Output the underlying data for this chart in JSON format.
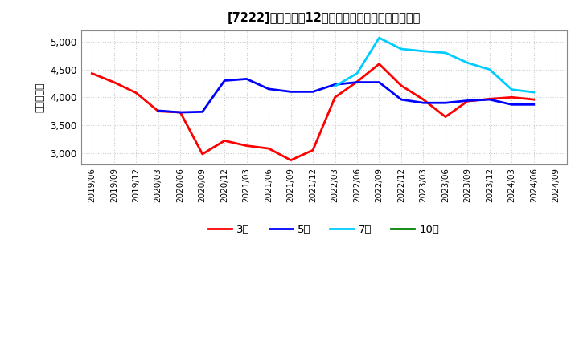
{
  "title": "[7222]　経常利益12か月移動合計の標準偏差の推移",
  "ylabel": "（百万円）",
  "ylim": [
    2800,
    5200
  ],
  "yticks": [
    3000,
    3500,
    4000,
    4500,
    5000
  ],
  "background_color": "#ffffff",
  "plot_bg_color": "#ffffff",
  "grid_color": "#aaaaaa",
  "series": {
    "3年": {
      "color": "#ff0000",
      "data": [
        [
          "2019/06",
          4430
        ],
        [
          "2019/09",
          4270
        ],
        [
          "2019/12",
          4080
        ],
        [
          "2020/03",
          3750
        ],
        [
          "2020/06",
          3730
        ],
        [
          "2020/09",
          2980
        ],
        [
          "2020/12",
          3220
        ],
        [
          "2021/03",
          3130
        ],
        [
          "2021/06",
          3080
        ],
        [
          "2021/09",
          2870
        ],
        [
          "2021/12",
          3050
        ],
        [
          "2022/03",
          4000
        ],
        [
          "2022/06",
          4280
        ],
        [
          "2022/09",
          4600
        ],
        [
          "2022/12",
          4210
        ],
        [
          "2023/03",
          3960
        ],
        [
          "2023/06",
          3650
        ],
        [
          "2023/09",
          3930
        ],
        [
          "2023/12",
          3970
        ],
        [
          "2024/03",
          4000
        ],
        [
          "2024/06",
          3960
        ]
      ]
    },
    "5年": {
      "color": "#0000ff",
      "data": [
        [
          "2020/03",
          3760
        ],
        [
          "2020/06",
          3730
        ],
        [
          "2020/09",
          3740
        ],
        [
          "2020/12",
          4300
        ],
        [
          "2021/03",
          4330
        ],
        [
          "2021/06",
          4150
        ],
        [
          "2021/09",
          4100
        ],
        [
          "2021/12",
          4100
        ],
        [
          "2022/03",
          4230
        ],
        [
          "2022/06",
          4270
        ],
        [
          "2022/09",
          4270
        ],
        [
          "2022/12",
          3960
        ],
        [
          "2023/03",
          3900
        ],
        [
          "2023/06",
          3900
        ],
        [
          "2023/09",
          3940
        ],
        [
          "2023/12",
          3960
        ],
        [
          "2024/03",
          3870
        ],
        [
          "2024/06",
          3870
        ]
      ]
    },
    "7年": {
      "color": "#00ccff",
      "data": [
        [
          "2022/03",
          4200
        ],
        [
          "2022/06",
          4430
        ],
        [
          "2022/09",
          5070
        ],
        [
          "2022/12",
          4870
        ],
        [
          "2023/03",
          4830
        ],
        [
          "2023/06",
          4800
        ],
        [
          "2023/09",
          4620
        ],
        [
          "2023/12",
          4500
        ],
        [
          "2024/03",
          4140
        ],
        [
          "2024/06",
          4090
        ]
      ]
    },
    "10年": {
      "color": "#008000",
      "data": []
    }
  },
  "xtick_labels": [
    "2019/06",
    "2019/09",
    "2019/12",
    "2020/03",
    "2020/06",
    "2020/09",
    "2020/12",
    "2021/03",
    "2021/06",
    "2021/09",
    "2021/12",
    "2022/03",
    "2022/06",
    "2022/09",
    "2022/12",
    "2023/03",
    "2023/06",
    "2023/09",
    "2023/12",
    "2024/03",
    "2024/06",
    "2024/09"
  ],
  "legend_order": [
    "3年",
    "5年",
    "7年",
    "10年"
  ]
}
